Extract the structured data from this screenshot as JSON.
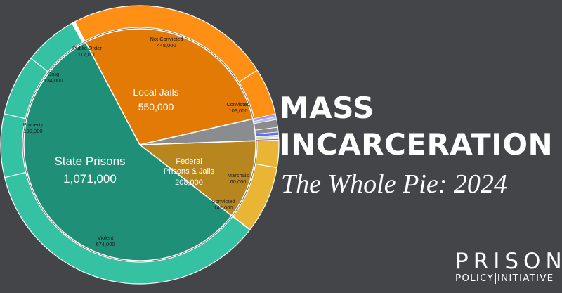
{
  "header": {
    "title_line1": "MASS",
    "title_line2": "INCARCERATION",
    "subtitle": "The Whole Pie: 2024"
  },
  "logo": {
    "line1": "PRISON",
    "line2a": "POLICY",
    "line2b": "INITIATIVE"
  },
  "colors": {
    "background": "#434548",
    "state": "#1f8f78",
    "state_outer": "#35c2a2",
    "jails": "#e37a05",
    "jails_outer": "#ff9015",
    "federal": "#b8861f",
    "federal_outer": "#e9b534",
    "other": "#8a8c90"
  },
  "chart_data": {
    "type": "pie",
    "inner": [
      {
        "name": "State Prisons",
        "value_label": "1,071,000",
        "value": 1071000,
        "color": "#1f8f78"
      },
      {
        "name": "Federal\nPrisons & Jails",
        "value_label": "208,000",
        "value": 208000,
        "color": "#b8861f"
      },
      {
        "name": "Other (unlabeled)",
        "value": 57000,
        "color": "#8a8c90"
      },
      {
        "name": "Local Jails",
        "value_label": "550,000",
        "value": 550000,
        "color": "#e37a05"
      }
    ],
    "outer": [
      {
        "name": "Violent",
        "value_label": "674,000",
        "value": 674000,
        "color": "#35c2a2",
        "parent": "State Prisons"
      },
      {
        "name": "Property",
        "value_label": "139,000",
        "value": 139000,
        "color": "#35c2a2",
        "parent": "State Prisons"
      },
      {
        "name": "Drug",
        "value_label": "134,000",
        "value": 134000,
        "color": "#35c2a2",
        "parent": "State Prisons"
      },
      {
        "name": "Public Order",
        "value_label": "117,000",
        "value": 117000,
        "color": "#35c2a2",
        "parent": "State Prisons"
      },
      {
        "name": "Not Convicted",
        "value_label": "448,000",
        "value": 448000,
        "color": "#ff9015",
        "parent": "Local Jails"
      },
      {
        "name": "Convicted",
        "value_label": "103,000",
        "value": 103000,
        "color": "#ff9015",
        "parent": "Local Jails"
      },
      {
        "name": "Marshals",
        "value_label": "60,000",
        "value": 60000,
        "color": "#e9b534",
        "parent": "Federal Prisons & Jails"
      },
      {
        "name": "Convicted",
        "value_label": "147,000",
        "value": 147000,
        "color": "#e9b534",
        "parent": "Federal Prisons & Jails"
      }
    ]
  }
}
